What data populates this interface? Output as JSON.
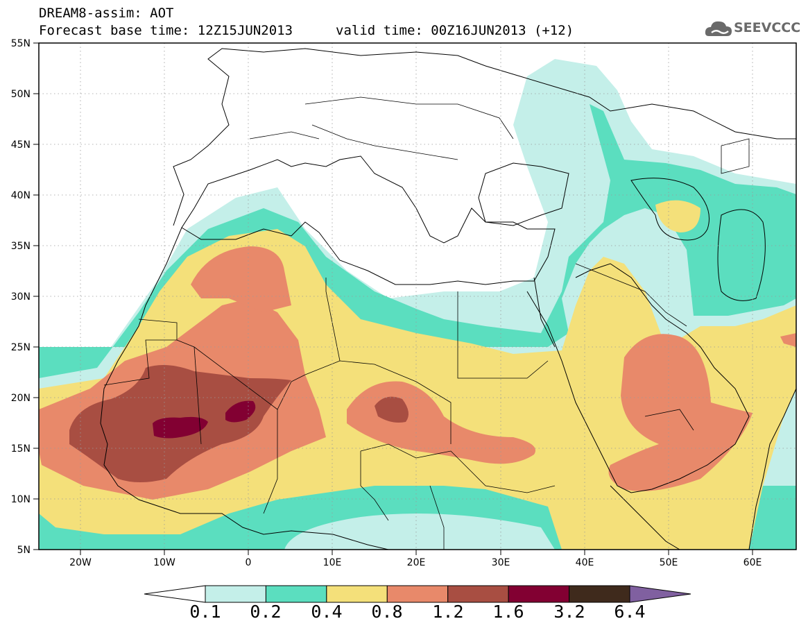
{
  "header": {
    "line1": "DREAM8-assim: AOT",
    "line2": "Forecast base time: 12Z15JUN2013",
    "valid": "valid time: 00Z16JUN2013 (+12)"
  },
  "logo": {
    "icon": "cloud-icon",
    "text": "SEEVCCC"
  },
  "map": {
    "lat_labels": [
      "55N",
      "50N",
      "45N",
      "40N",
      "35N",
      "30N",
      "25N",
      "20N",
      "15N",
      "10N",
      "5N"
    ],
    "lon_labels": [
      "20W",
      "10W",
      "0",
      "10E",
      "20E",
      "30E",
      "40E",
      "50E",
      "60E"
    ],
    "lon_range": [
      -25,
      65
    ],
    "lat_range": [
      5,
      55
    ],
    "grid": "dotted"
  },
  "colorbar": {
    "labels": [
      "0.1",
      "0.2",
      "0.4",
      "0.8",
      "1.2",
      "1.6",
      "3.2",
      "6.4"
    ],
    "colors": [
      "#c4efe9",
      "#5bdebf",
      "#f4e07a",
      "#e8896a",
      "#a84e42",
      "#820032",
      "#3f2a1c"
    ],
    "under_color": "#ffffff",
    "over_color": "#8060a0"
  }
}
